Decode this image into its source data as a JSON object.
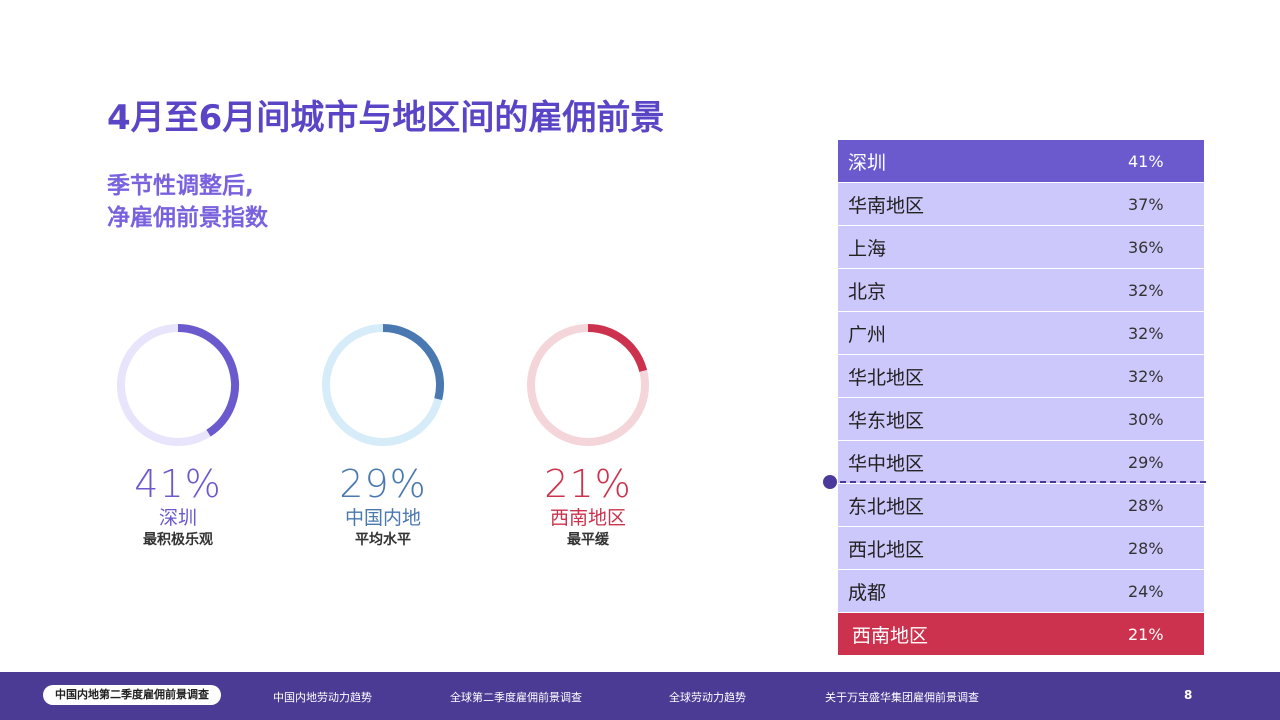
{
  "title": "4月至6月间城市与地区间的雇佣前景",
  "subtitle_line1": "季节性调整后,",
  "subtitle_line2": "净雇佣前景指数",
  "highlights": [
    {
      "pct": "41%",
      "region": "深圳",
      "desc": "最积极乐观",
      "value": 41,
      "color": "#6a5acd",
      "track": "#e7e4fb"
    },
    {
      "pct": "29%",
      "region": "中国内地",
      "desc": "平均水平",
      "value": 29,
      "color": "#4a78b0",
      "track": "#d6ecf8"
    },
    {
      "pct": "21%",
      "region": "西南地区",
      "desc": "最平缓",
      "value": 21,
      "color": "#cc324d",
      "track": "#f3d5da"
    }
  ],
  "chart_data": {
    "type": "table",
    "categories": [
      "深圳",
      "华南地区",
      "上海",
      "北京",
      "广州",
      "华北地区",
      "华东地区",
      "华中地区",
      "东北地区",
      "西北地区",
      "成都",
      "西南地区"
    ],
    "labels": [
      "41%",
      "37%",
      "36%",
      "32%",
      "32%",
      "32%",
      "30%",
      "29%",
      "28%",
      "28%",
      "24%",
      "21%"
    ],
    "values": [
      41,
      37,
      36,
      32,
      32,
      32,
      30,
      29,
      28,
      28,
      24,
      21
    ],
    "reference_value": 29
  },
  "colors": {
    "accent": "#6a5acd",
    "low": "#cc324d",
    "row": "#cdc8fb",
    "footer": "#4b3b95"
  },
  "footer": {
    "active": "中国内地第二季度雇佣前景调查",
    "items": [
      "中国内地劳动力趋势",
      "全球第二季度雇佣前景调查",
      "全球劳动力趋势",
      "关于万宝盛华集团雇佣前景调查"
    ],
    "page": "8"
  }
}
